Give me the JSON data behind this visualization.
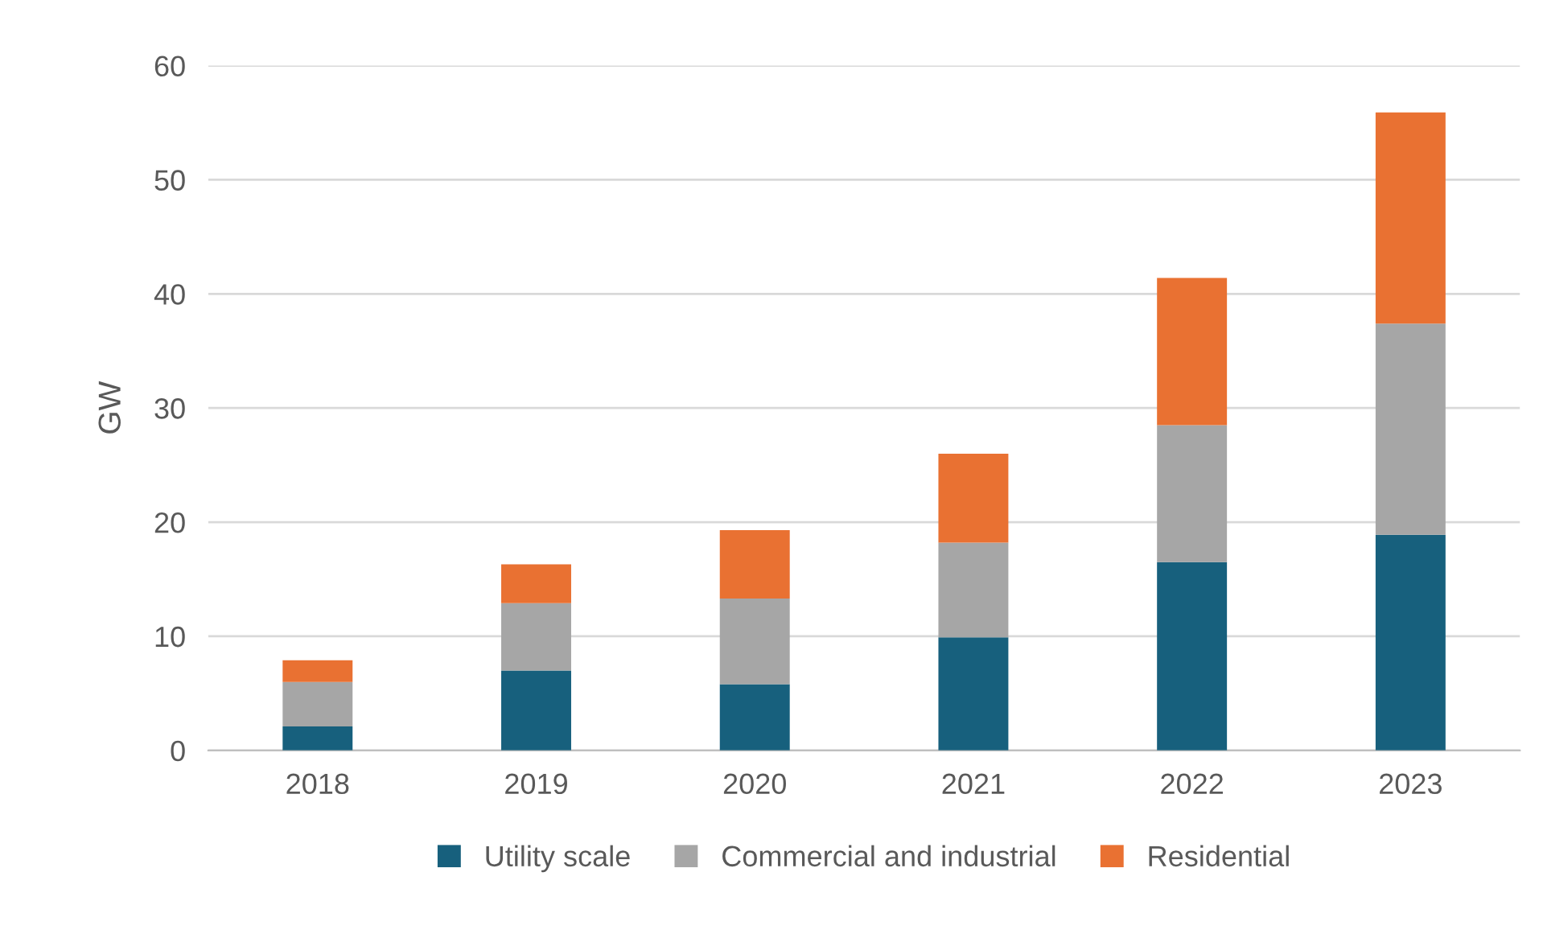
{
  "chart_data": {
    "type": "bar",
    "stacked": true,
    "ylabel": "GW",
    "categories": [
      "2018",
      "2019",
      "2020",
      "2021",
      "2022",
      "2023"
    ],
    "series": [
      {
        "name": "Utility scale",
        "color": "#17607d",
        "values": [
          2.1,
          7.0,
          5.8,
          9.9,
          16.5,
          18.9
        ]
      },
      {
        "name": "Commercial and industrial",
        "color": "#a6a6a6",
        "values": [
          3.9,
          5.9,
          7.5,
          8.3,
          12.0,
          18.5
        ]
      },
      {
        "name": "Residential",
        "color": "#e97132",
        "values": [
          1.9,
          3.4,
          6.0,
          7.8,
          12.9,
          18.5
        ]
      }
    ],
    "ylim": [
      0,
      60
    ],
    "yticks": [
      0,
      10,
      20,
      30,
      40,
      50,
      60
    ],
    "grid": "y",
    "legend": "bottom"
  }
}
